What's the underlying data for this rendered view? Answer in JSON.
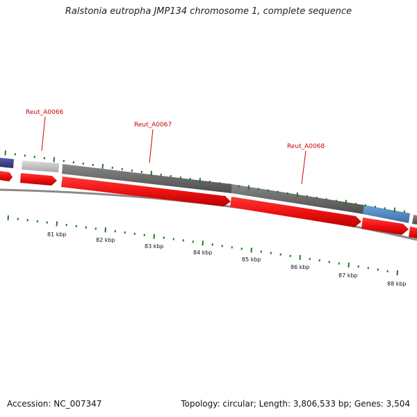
{
  "title": "Ralstonia eutropha JMP134 chromosome 1, complete sequence",
  "footer": {
    "accession": "Accession: NC_007347",
    "summary": "Topology: circular; Length: 3,806,533 bp; Genes: 3,504"
  },
  "colors": {
    "cds_red": "#ee1111",
    "gene_gray": "#6a6a6a",
    "gene_light": "#c4c4c4",
    "gene_blue": "#4f86be",
    "gene_navy": "#3b3b8a",
    "tick_green": "#1e7a1e",
    "backbone": "#7a7a7a",
    "label_red": "#cc0000"
  },
  "diagram": {
    "position_labels": [
      "81 kbp",
      "82 kbp",
      "83 kbp",
      "84 kbp",
      "85 kbp",
      "86 kbp",
      "87 kbp",
      "88 kbp"
    ],
    "gene_labels": [
      "Reut_A0066",
      "Reut_A0067",
      "Reut_A0068"
    ]
  }
}
